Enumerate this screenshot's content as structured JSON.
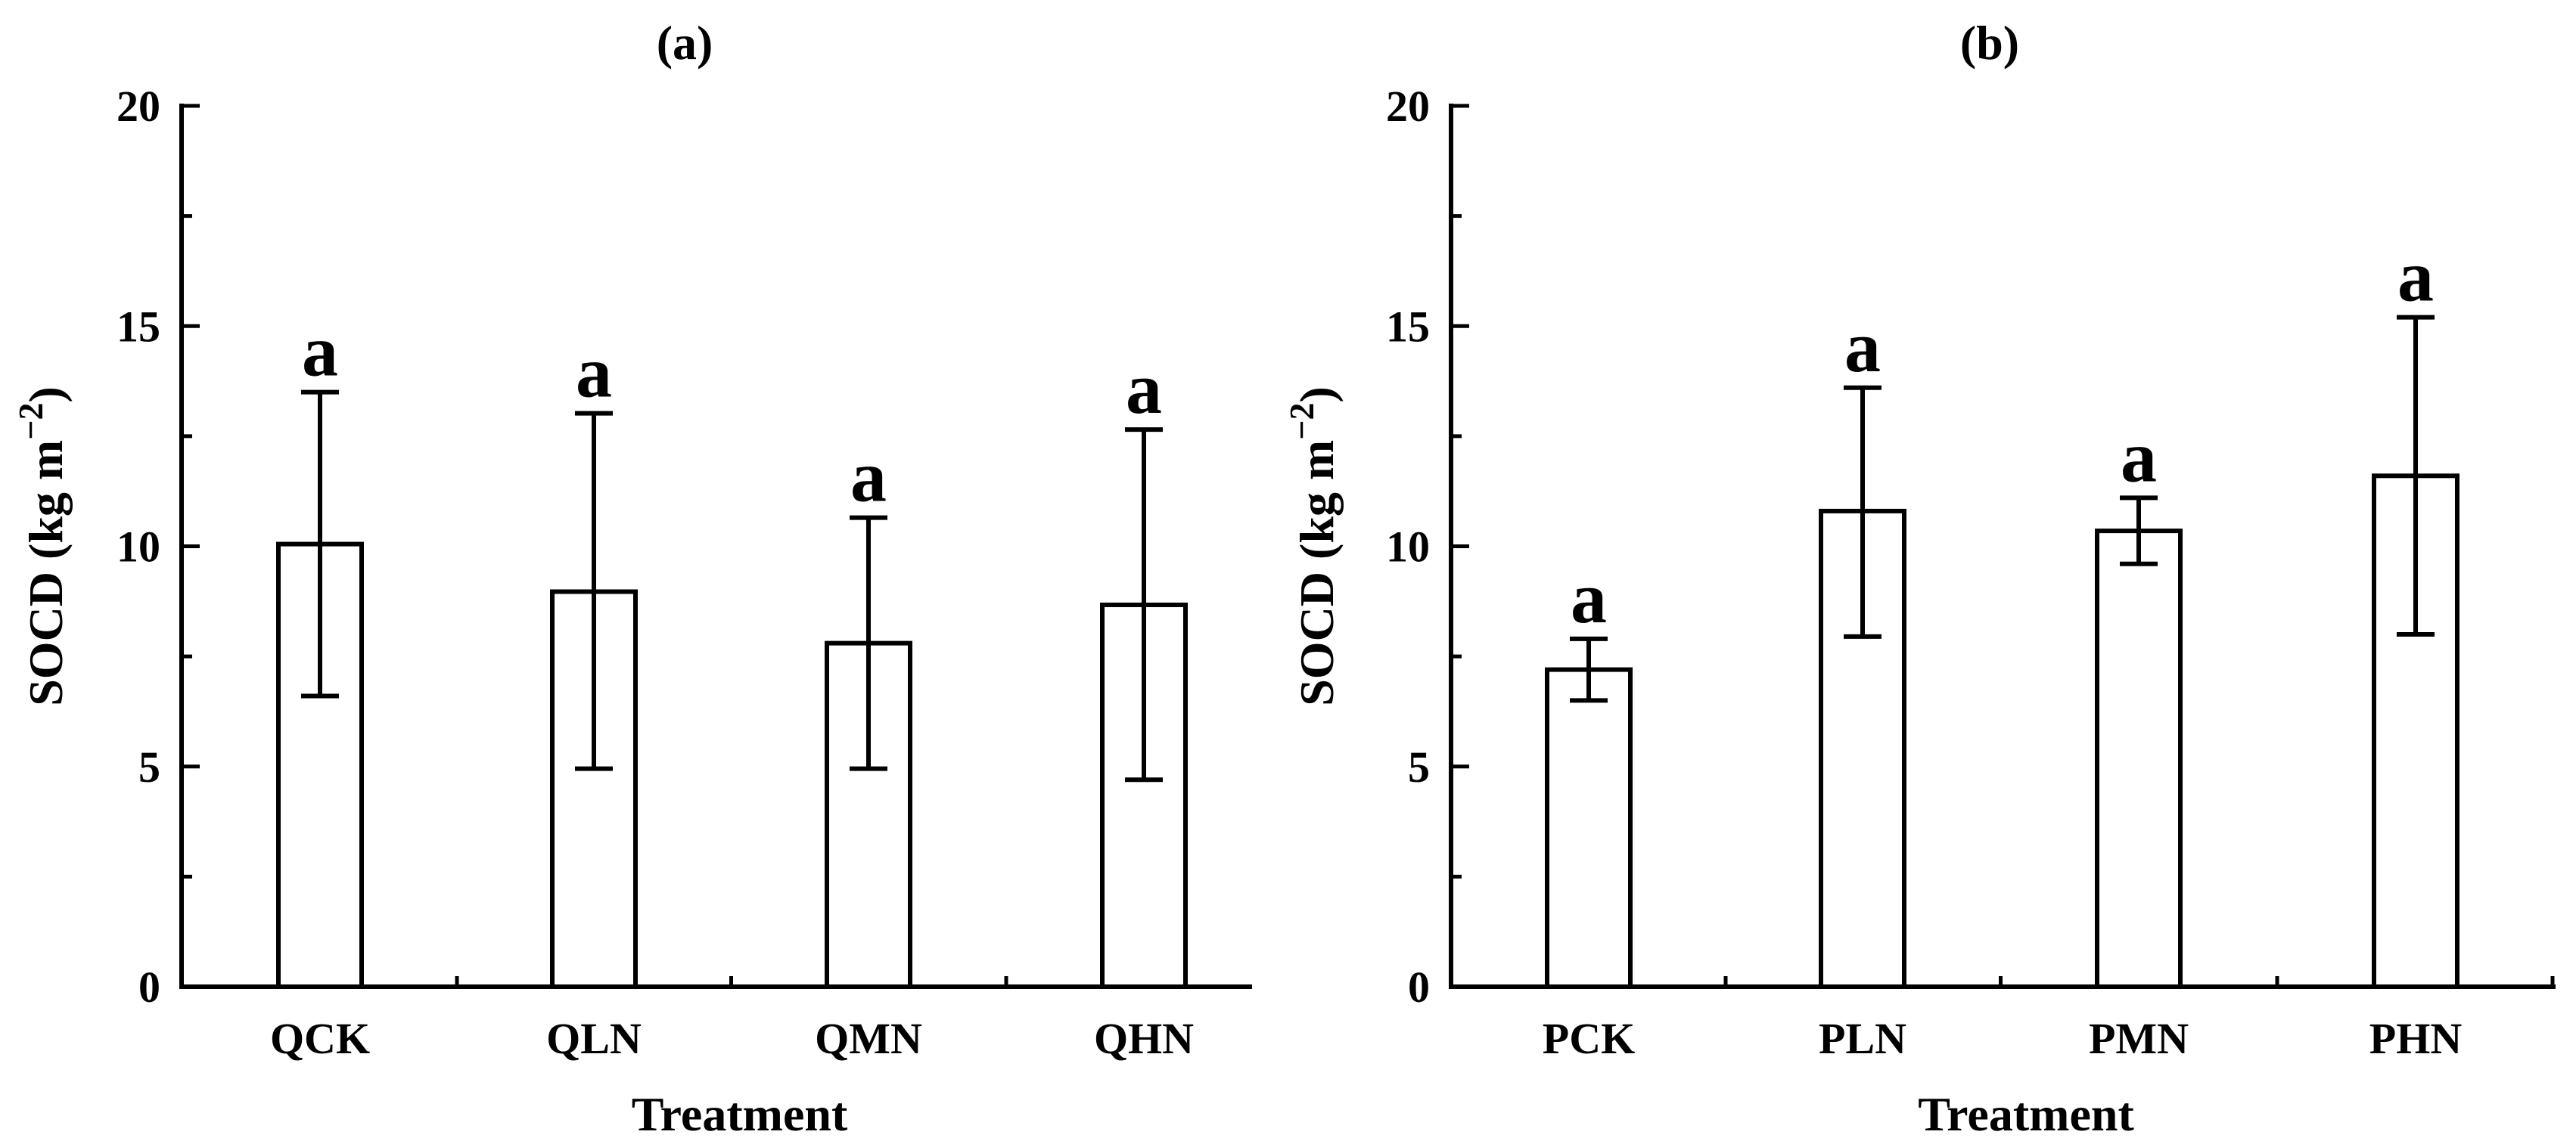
{
  "chart_data": [
    {
      "type": "bar",
      "title": "(a)",
      "xlabel": "Treatment",
      "ylabel": "SOCD (kg m",
      "ylabel_sup": "−2",
      "ylabel_close": ")",
      "ylim": [
        0,
        20
      ],
      "yticks": [
        0,
        5,
        10,
        15,
        20
      ],
      "grid": false,
      "categories": [
        "QCK",
        "QLN",
        "QMN",
        "QHN"
      ],
      "values": [
        10.05,
        8.97,
        7.8,
        8.67
      ],
      "error_low": [
        6.6,
        4.95,
        4.95,
        4.7
      ],
      "error_high": [
        13.5,
        13.02,
        10.65,
        12.65
      ],
      "significance": [
        "a",
        "a",
        "a",
        "a"
      ]
    },
    {
      "type": "bar",
      "title": "(b)",
      "xlabel": "Treatment",
      "ylabel": "SOCD (kg m",
      "ylabel_sup": "−2",
      "ylabel_close": ")",
      "ylim": [
        0,
        20
      ],
      "yticks": [
        0,
        5,
        10,
        15,
        20
      ],
      "grid": false,
      "categories": [
        "PCK",
        "PLN",
        "PMN",
        "PHN"
      ],
      "values": [
        7.2,
        10.8,
        10.35,
        11.6
      ],
      "error_low": [
        6.5,
        7.95,
        9.6,
        8.0
      ],
      "error_high": [
        7.9,
        13.6,
        11.1,
        15.2
      ],
      "significance": [
        "a",
        "a",
        "a",
        "a"
      ]
    }
  ]
}
